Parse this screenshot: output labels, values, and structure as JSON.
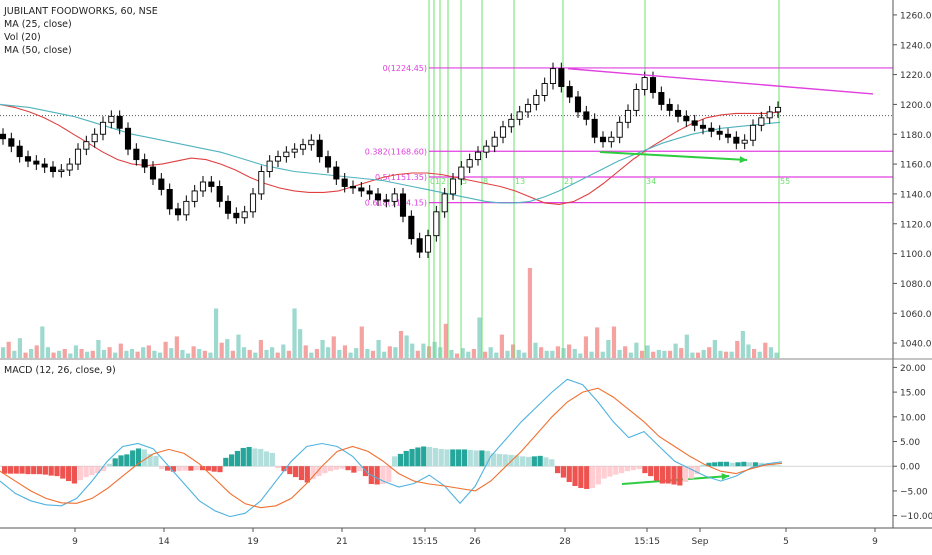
{
  "header": {
    "symbol_line": "JUBILANT FOODWORKS, 60, NSE",
    "ma25_label": "MA (25, close)",
    "vol_label": "Vol (20)",
    "ma50_label": "MA (50, close)",
    "macd_label": "MACD (12, 26, close, 9)"
  },
  "colors": {
    "up": "#26a69a",
    "down": "#ef5350",
    "candle": "#000000",
    "ma25": "#e04040",
    "ma50": "#4fb3bf",
    "fib": "#e040e0",
    "fib_time": "#6ee06e",
    "arrow": "#2ecc40",
    "macd_line": "#4fb3e0",
    "signal_line": "#f07030"
  },
  "chart_data": [
    {
      "type": "line",
      "title": "JUBILANT FOODWORKS, 60, NSE",
      "x_labels": [
        "9",
        "14",
        "19",
        "21",
        "15:15",
        "26",
        "28",
        "15:15",
        "Sep",
        "5",
        "9"
      ],
      "ylim": [
        1030,
        1270
      ],
      "y_ticks": [
        1040,
        1060,
        1080,
        1100,
        1120,
        1140,
        1160,
        1180,
        1200,
        1220,
        1240,
        1260
      ],
      "candles_approx_close": [
        1177,
        1172,
        1165,
        1162,
        1160,
        1158,
        1155,
        1156,
        1160,
        1170,
        1175,
        1180,
        1188,
        1192,
        1184,
        1170,
        1163,
        1158,
        1150,
        1143,
        1130,
        1126,
        1135,
        1142,
        1148,
        1145,
        1135,
        1127,
        1124,
        1128,
        1140,
        1155,
        1162,
        1165,
        1168,
        1170,
        1173,
        1176,
        1165,
        1158,
        1150,
        1145,
        1144,
        1142,
        1140,
        1136,
        1135,
        1140,
        1125,
        1110,
        1101,
        1112,
        1128,
        1140,
        1150,
        1158,
        1163,
        1168,
        1172,
        1178,
        1185,
        1190,
        1195,
        1200,
        1206,
        1214,
        1224,
        1212,
        1205,
        1195,
        1190,
        1178,
        1175,
        1178,
        1188,
        1196,
        1210,
        1218,
        1208,
        1200,
        1196,
        1192,
        1189,
        1186,
        1184,
        1182,
        1180,
        1178,
        1174,
        1176,
        1186,
        1191,
        1195,
        1198
      ],
      "series": [
        {
          "name": "MA (25, close)",
          "values": [
            1200,
            1198,
            1195,
            1191,
            1186,
            1180,
            1174,
            1168,
            1163,
            1160,
            1159,
            1160,
            1162,
            1164,
            1163,
            1160,
            1156,
            1151,
            1147,
            1144,
            1142,
            1141,
            1141,
            1142,
            1145,
            1148,
            1151,
            1153,
            1154,
            1154,
            1153,
            1151,
            1149,
            1147,
            1145,
            1142,
            1138,
            1134,
            1133,
            1135,
            1140,
            1147,
            1155,
            1163,
            1170,
            1176,
            1182,
            1187,
            1191,
            1193,
            1194,
            1194,
            1194,
            1195
          ]
        },
        {
          "name": "MA (50, close)",
          "values": [
            1200,
            1199,
            1198,
            1196,
            1194,
            1192,
            1189,
            1186,
            1183,
            1180,
            1178,
            1176,
            1174,
            1172,
            1170,
            1168,
            1165,
            1162,
            1159,
            1157,
            1155,
            1154,
            1153,
            1152,
            1151,
            1150,
            1149,
            1147,
            1145,
            1143,
            1141,
            1139,
            1137,
            1135,
            1134,
            1134,
            1135,
            1138,
            1142,
            1147,
            1152,
            1157,
            1162,
            1166,
            1170,
            1174,
            1177,
            1180,
            1182,
            1184,
            1185,
            1186,
            1187,
            1188
          ]
        }
      ],
      "fib_levels": [
        {
          "label": "0(1224.45)",
          "value": 1224.45
        },
        {
          "label": "0.382(1168.60)",
          "value": 1168.6
        },
        {
          "label": "0.5(1151.35)",
          "value": 1151.35
        },
        {
          "label": "0.618(1134.15)",
          "value": 1134.15
        }
      ],
      "fib_time_labels": [
        "0",
        "1",
        "2",
        "3",
        "5",
        "8",
        "13",
        "21",
        "34",
        "55"
      ],
      "annotations": [
        "descending trendline",
        "bullish divergence arrow"
      ]
    },
    {
      "type": "bar",
      "title": "Vol (20)",
      "values_relative": [
        0.12,
        0.18,
        0.08,
        0.22,
        0.06,
        0.1,
        0.14,
        0.35,
        0.12,
        0.06,
        0.08,
        0.1,
        0.05,
        0.14,
        0.1,
        0.07,
        0.08,
        0.2,
        0.09,
        0.12,
        0.06,
        0.16,
        0.08,
        0.1,
        0.07,
        0.12,
        0.14,
        0.08,
        0.06,
        0.18,
        0.11,
        0.24,
        0.09,
        0.05,
        0.13,
        0.1,
        0.08,
        0.06,
        0.55,
        0.17,
        0.21,
        0.08,
        0.26,
        0.12,
        0.09,
        0.06,
        0.2,
        0.09,
        0.12,
        0.06,
        0.15,
        0.08,
        0.55,
        0.32,
        0.14,
        0.06,
        0.1,
        0.2,
        0.12,
        0.24,
        0.09,
        0.14,
        0.06,
        0.11,
        0.35,
        0.1,
        0.08,
        0.2,
        0.07,
        0.13,
        0.12,
        0.3,
        0.25,
        0.16,
        0.08,
        0.16,
        0.13,
        0.18,
        0.12,
        0.38,
        0.09,
        0.05,
        0.11,
        0.07,
        0.1,
        0.45,
        0.07,
        0.12,
        0.06,
        0.26,
        0.08,
        0.15,
        0.09,
        0.06,
        1.0,
        0.17,
        0.12,
        0.08,
        0.08,
        0.13,
        0.11,
        0.15,
        0.1,
        0.05,
        0.24,
        0.07,
        0.34,
        0.07,
        0.2,
        0.35,
        0.09,
        0.13,
        0.06,
        0.17,
        0.08,
        0.14,
        0.07,
        0.09,
        0.08,
        0.08,
        0.16,
        0.11,
        0.26,
        0.06,
        0.06,
        0.09,
        0.12,
        0.2,
        0.08,
        0.07,
        0.07,
        0.19,
        0.3,
        0.15,
        0.1,
        0.07,
        0.17,
        0.12,
        0.06
      ]
    },
    {
      "type": "line",
      "title": "MACD (12, 26, close, 9)",
      "ylim": [
        -12.5,
        21.5
      ],
      "y_ticks": [
        20,
        15,
        10,
        5,
        0,
        -5,
        -10
      ],
      "y_tick_labels": [
        "20.00",
        "15.00",
        "10.00",
        "5.00",
        "0.00",
        "−5.00",
        "−10.00"
      ],
      "series": [
        {
          "name": "MACD",
          "values": [
            -3,
            -5.5,
            -7,
            -7.8,
            -8,
            -6.5,
            -3,
            1,
            4,
            4.6,
            3.5,
            0,
            -3.5,
            -7,
            -9,
            -10.2,
            -9.5,
            -7,
            -3,
            1,
            4,
            4.6,
            4,
            2,
            -1.5,
            -3,
            -4.2,
            -3.5,
            -1.8,
            -4,
            -7.5,
            -4,
            2,
            5.5,
            9,
            12,
            15,
            17.6,
            16.5,
            13,
            9,
            5.8,
            7,
            4,
            1,
            -0.5,
            -2,
            -3,
            -2,
            -0.3,
            0.5,
            0.9
          ]
        },
        {
          "name": "Signal",
          "values": [
            -1,
            -3,
            -5,
            -6.5,
            -7.4,
            -7.5,
            -6.5,
            -4.5,
            -2,
            0.5,
            2.5,
            3.4,
            2.6,
            0.5,
            -2.5,
            -5.5,
            -7.6,
            -8.4,
            -8,
            -6.5,
            -3.5,
            0,
            3,
            4,
            3,
            1,
            -1.5,
            -3,
            -3.6,
            -4,
            -4.5,
            -5,
            -3,
            0,
            3,
            6.5,
            10,
            13,
            15,
            15.8,
            14,
            11.5,
            9,
            6,
            4,
            2,
            0.3,
            -1,
            -1.5,
            -0.5,
            0.3,
            0.6
          ]
        }
      ],
      "histogram": [
        -1.5,
        -1.5,
        -1.5,
        -1.5,
        -1.6,
        -1.6,
        -1.6,
        -1.7,
        -1.9,
        -2.0,
        -2.5,
        -3.0,
        -3.5,
        -2.8,
        -2.2,
        -1.8,
        -1.4,
        -1.0,
        0.5,
        1.6,
        2.2,
        2.4,
        3.2,
        3.6,
        3.4,
        2.5,
        2.1,
        -0.6,
        -0.9,
        -1.1,
        -1.0,
        -0.9,
        -0.9,
        -0.8,
        -0.8,
        -0.9,
        -1.1,
        -1.2,
        1.7,
        2.4,
        3.1,
        3.7,
        3.9,
        3.6,
        3.5,
        3.0,
        2.7,
        -0.4,
        -1.0,
        -1.6,
        -2.2,
        -2.8,
        -3.3,
        -2.6,
        -2.0,
        -1.4,
        -1.0,
        -0.7,
        -0.5,
        -0.8,
        -1.3,
        -1.0,
        -2.0,
        -3.6,
        -3.7,
        -3.6,
        -3.2,
        2.0,
        2.5,
        3.1,
        3.5,
        3.8,
        4.0,
        3.9,
        3.7,
        3.5,
        3.4,
        3.4,
        3.4,
        3.4,
        3.3,
        3.2,
        3.2,
        3.1,
        2.6,
        2.5,
        2.4,
        2.3,
        2.2,
        2.0,
        1.9,
        2.0,
        2.1,
        1.8,
        1.4,
        -1.4,
        -2.3,
        -3.2,
        -4.0,
        -4.4,
        -4.6,
        -4.4,
        -3.7,
        -2.5,
        -2.1,
        -1.7,
        -1.4,
        -1.0,
        -0.8,
        -0.6,
        -1.4,
        -2.0,
        -2.9,
        -3.5,
        -3.5,
        -3.7,
        -3.9,
        -3.2,
        -2.5,
        -1.6,
        0.3,
        0.7,
        0.8,
        0.9,
        0.9,
        0.7,
        0.8,
        0.9,
        0.8,
        0.8,
        0.7,
        0.5,
        0.3,
        0.2
      ]
    }
  ],
  "axis": {
    "price_ticks": [
      "1260.00",
      "1240.00",
      "1220.00",
      "1200.00",
      "1180.00",
      "1160.00",
      "1140.00",
      "1120.00",
      "1100.00",
      "1080.00",
      "1060.00",
      "1040.00"
    ],
    "x_ticks": [
      "9",
      "14",
      "19",
      "21",
      "15:15",
      "26",
      "28",
      "15:15",
      "Sep",
      "5",
      "9"
    ]
  }
}
